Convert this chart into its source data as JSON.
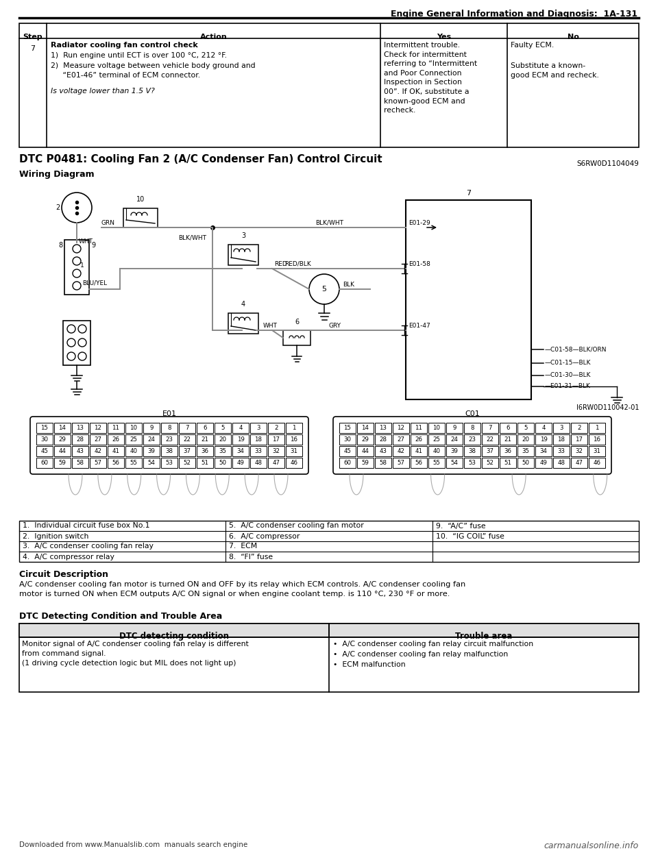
{
  "page_title": "Engine General Information and Diagnosis:  1A-131",
  "bg_color": "#ffffff",
  "top_table": {
    "step": "7",
    "action_bold": "Radiator cooling fan control check",
    "action_line1": "1)  Run engine until ECT is over 100 °C, 212 °F.",
    "action_line2": "2)  Measure voltage between vehicle body ground and",
    "action_line3": "     “E01-46” terminal of ECM connector.",
    "action_italic": "Is voltage lower than 1.5 V?",
    "yes_text": "Intermittent trouble.\nCheck for intermittent\nreferring to “Intermittent\nand Poor Connection\nInspection in Section\n00”. If OK, substitute a\nknown-good ECM and\nrecheck.",
    "no_text": "Faulty ECM.\n\nSubstitute a known-\ngood ECM and recheck."
  },
  "dtc_title": "DTC P0481: Cooling Fan 2 (A/C Condenser Fan) Control Circuit",
  "dtc_ref": "S6RW0D1104049",
  "wiring_title": "Wiring Diagram",
  "diagram_ref": "I6RW0D110042-01",
  "legend": [
    [
      "1.  Individual circuit fuse box No.1",
      "5.  A/C condenser cooling fan motor",
      "9.  “A/C” fuse"
    ],
    [
      "2.  Ignition switch",
      "6.  A/C compressor",
      "10.  “IG COIL” fuse"
    ],
    [
      "3.  A/C condenser cooling fan relay",
      "7.  ECM",
      ""
    ],
    [
      "4.  A/C compressor relay",
      "8.  “FI” fuse",
      ""
    ]
  ],
  "circuit_title": "Circuit Description",
  "circuit_text": "A/C condenser cooling fan motor is turned ON and OFF by its relay which ECM controls. A/C condenser cooling fan\nmotor is turned ON when ECM outputs A/C ON signal or when engine coolant temp. is 110 °C, 230 °F or more.",
  "dtc_table_title": "DTC Detecting Condition and Trouble Area",
  "dtc_col1": "DTC detecting condition",
  "dtc_col2": "Trouble area",
  "dtc_cond": "Monitor signal of A/C condenser cooling fan relay is different\nfrom command signal.\n(1 driving cycle detection logic but MIL does not light up)",
  "dtc_trouble": "•  A/C condenser cooling fan relay circuit malfunction\n•  A/C condenser cooling fan relay malfunction\n•  ECM malfunction",
  "footer_left": "Downloaded from www.Manualslib.com  manuals search engine",
  "footer_right": "carmanualsonline.info",
  "e01_rows": [
    [
      "15",
      "14",
      "13",
      "12",
      "11",
      "10",
      "9",
      "8",
      "7",
      "6",
      "5",
      "4",
      "3",
      "2",
      "1"
    ],
    [
      "30",
      "29",
      "28",
      "27",
      "26",
      "25",
      "24",
      "23",
      "22",
      "21",
      "20",
      "19",
      "18",
      "17",
      "16"
    ],
    [
      "45",
      "44",
      "43",
      "42",
      "41",
      "40",
      "39",
      "38",
      "37",
      "36",
      "35",
      "34",
      "33",
      "32",
      "31"
    ],
    [
      "60",
      "59",
      "58",
      "57",
      "56",
      "55",
      "54",
      "53",
      "52",
      "51",
      "50",
      "49",
      "48",
      "47",
      "46"
    ]
  ],
  "c01_rows": [
    [
      "15",
      "14",
      "13",
      "12",
      "11",
      "10",
      "9",
      "8",
      "7",
      "6",
      "5",
      "4",
      "3",
      "2",
      "1"
    ],
    [
      "30",
      "29",
      "28",
      "27",
      "26",
      "25",
      "24",
      "23",
      "22",
      "21",
      "20",
      "19",
      "18",
      "17",
      "16"
    ],
    [
      "45",
      "44",
      "43",
      "42",
      "41",
      "40",
      "39",
      "38",
      "37",
      "36",
      "35",
      "34",
      "33",
      "32",
      "31"
    ],
    [
      "60",
      "59",
      "58",
      "57",
      "56",
      "55",
      "54",
      "53",
      "52",
      "51",
      "50",
      "49",
      "48",
      "47",
      "46"
    ]
  ]
}
